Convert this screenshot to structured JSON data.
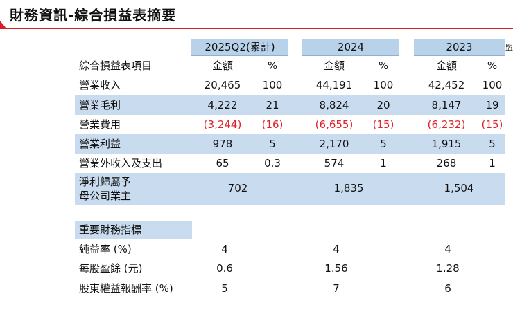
{
  "title": "財務資訊-綜合損益表摘要",
  "edge_char": "盟",
  "periods": [
    "2025Q2(累計)",
    "2024",
    "2023"
  ],
  "col_headers": {
    "label": "綜合損益表項目",
    "amount": "金額",
    "pct": "%"
  },
  "rows": [
    {
      "label": "營業收入",
      "values": [
        [
          "20,465",
          "100"
        ],
        [
          "44,191",
          "100"
        ],
        [
          "42,452",
          "100"
        ]
      ]
    },
    {
      "label": "營業毛利",
      "values": [
        [
          "4,222",
          "21"
        ],
        [
          "8,824",
          "20"
        ],
        [
          "8,147",
          "19"
        ]
      ]
    },
    {
      "label": "營業費用",
      "values": [
        [
          "(3,244)",
          "(16)"
        ],
        [
          "(6,655)",
          "(15)"
        ],
        [
          "(6,232)",
          "(15)"
        ]
      ]
    },
    {
      "label": "營業利益",
      "values": [
        [
          "978",
          "5"
        ],
        [
          "2,170",
          "5"
        ],
        [
          "1,915",
          "5"
        ]
      ]
    },
    {
      "label": "營業外收入及支出",
      "values": [
        [
          "65",
          "0.3"
        ],
        [
          "574",
          "1"
        ],
        [
          "268",
          "1"
        ]
      ]
    }
  ],
  "net_income": {
    "label_line1": "淨利歸屬予",
    "label_line2": "母公司業主",
    "values": [
      "702",
      "1,835",
      "1,504"
    ]
  },
  "indicators": {
    "title": "重要財務指標",
    "rows": [
      {
        "label": "純益率 (%)",
        "values": [
          "4",
          "4",
          "4"
        ]
      },
      {
        "label": "每股盈餘 (元)",
        "values": [
          "0.6",
          "1.56",
          "1.28"
        ]
      },
      {
        "label": "股東權益報酬率 (%)",
        "values": [
          "5",
          "7",
          "6"
        ]
      }
    ]
  },
  "colors": {
    "accent_red": "#d81e2c",
    "negative_red": "#e0202a",
    "band_blue": "#c9dbef",
    "header_blue": "#b8d2ea"
  }
}
